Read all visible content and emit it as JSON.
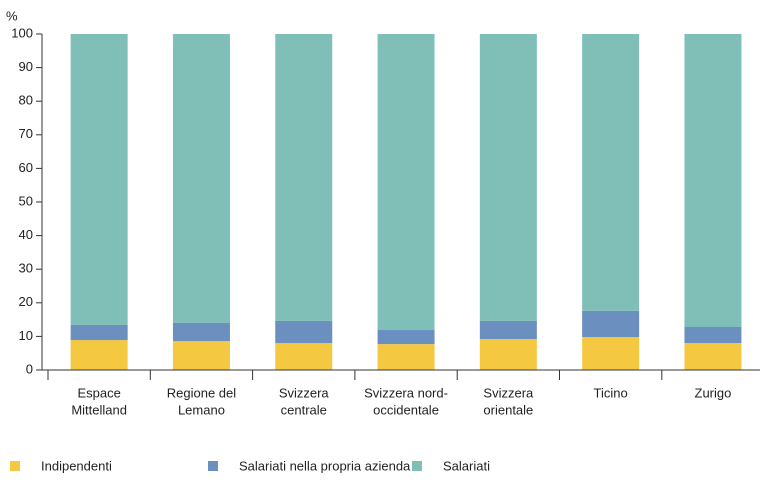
{
  "chart_data": {
    "type": "stacked_bar",
    "ylabel": "%",
    "categories": [
      [
        "Espace",
        "Mittelland"
      ],
      [
        "Regione del",
        "Lemano"
      ],
      [
        "Svizzera",
        "centrale"
      ],
      [
        "Svizzera nord-",
        "occidentale"
      ],
      [
        "Svizzera",
        "orientale"
      ],
      [
        "Ticino"
      ],
      [
        "Zurigo"
      ]
    ],
    "series": [
      {
        "name": "Indipendenti",
        "color": "#f5c842",
        "values": [
          8.9,
          8.6,
          8.0,
          7.7,
          9.2,
          9.8,
          8.0
        ]
      },
      {
        "name": "Salariati nella propria azienda",
        "color": "#6b8fbf",
        "values": [
          4.5,
          5.4,
          6.6,
          4.2,
          5.4,
          7.8,
          4.8
        ]
      },
      {
        "name": "Salariati",
        "color": "#7fbfb8",
        "values": [
          86.6,
          86.0,
          85.4,
          88.1,
          85.4,
          82.4,
          87.2
        ]
      }
    ],
    "ylim": [
      0,
      100
    ],
    "yticks": [
      0,
      10,
      20,
      30,
      40,
      50,
      60,
      70,
      80,
      90,
      100
    ],
    "legend": "bottom"
  }
}
